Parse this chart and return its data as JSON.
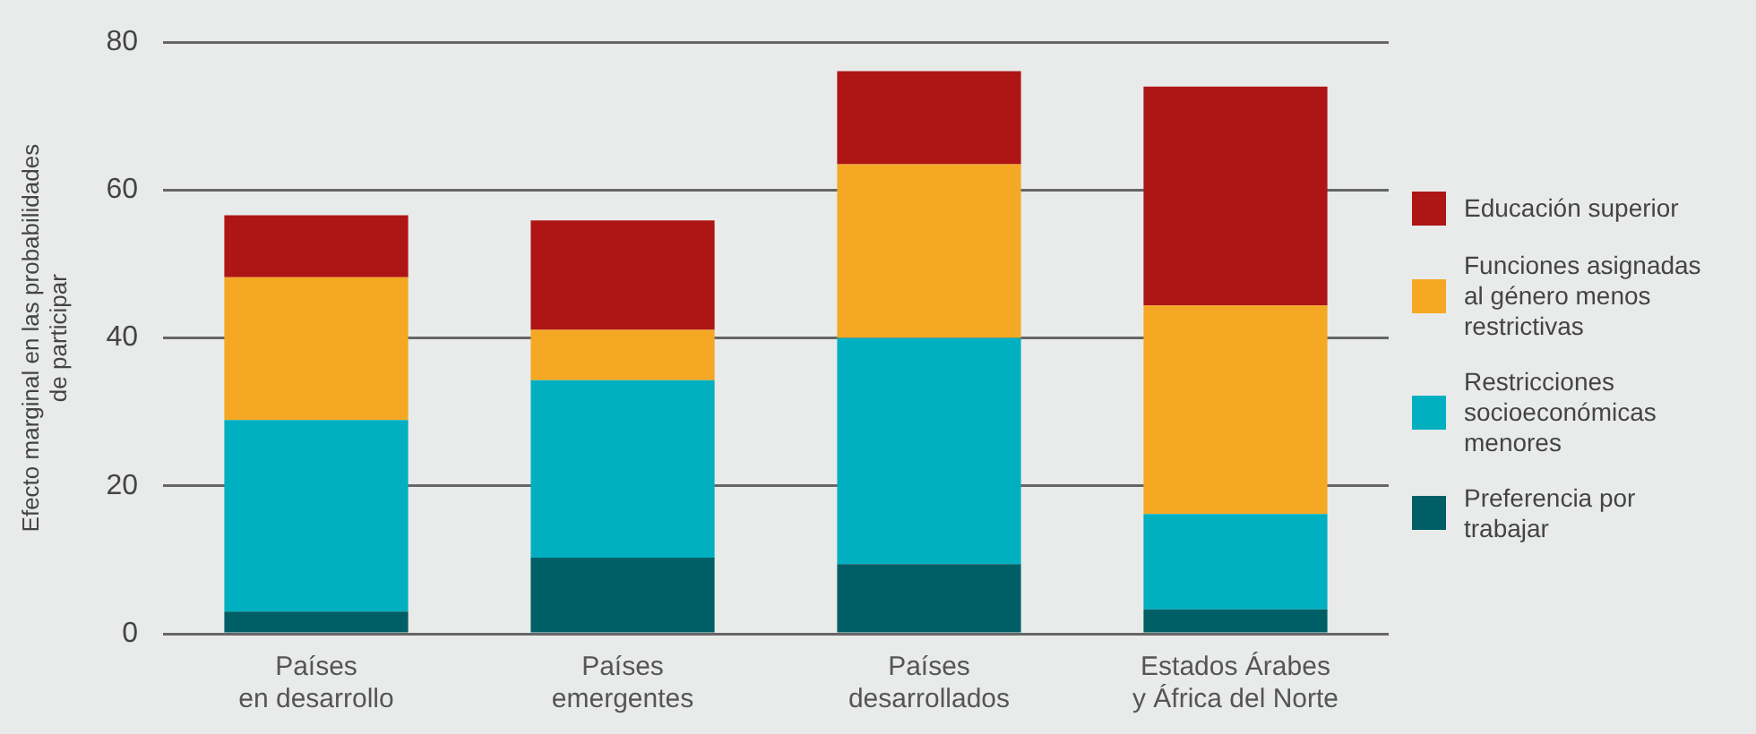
{
  "chart_data": {
    "type": "bar",
    "stacked": true,
    "ylabel": "Efecto marginal en las probabilidades\nde participar",
    "categories": [
      "Países\nen desarrollo",
      "Países\nemergentes",
      "Países\ndesarrollados",
      "Estados Árabes\ny África del Norte"
    ],
    "series": [
      {
        "name": "Preferencia por trabajar",
        "color": "#005f66",
        "values": [
          3.0,
          10.3,
          9.4,
          3.3
        ]
      },
      {
        "name": "Restricciones socioeconómicas menores",
        "color": "#00b0c1",
        "values": [
          25.9,
          24.0,
          30.6,
          12.9
        ]
      },
      {
        "name": "Funciones asignadas al género menos restrictivas",
        "color": "#f5a823",
        "values": [
          19.3,
          6.8,
          23.5,
          28.2
        ]
      },
      {
        "name": "Educación superior",
        "color": "#ae1515",
        "values": [
          8.4,
          14.8,
          12.6,
          29.6
        ]
      }
    ],
    "ylim": [
      0,
      80
    ],
    "yticks": [
      0,
      20,
      40,
      60,
      80
    ],
    "grid": "y",
    "legend": "right"
  }
}
